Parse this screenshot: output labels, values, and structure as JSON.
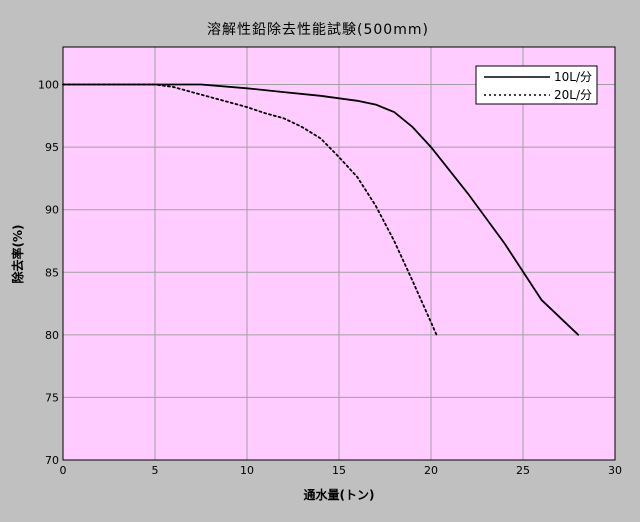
{
  "chart_data": {
    "type": "line",
    "title": "溶解性鉛除去性能試験(500mm)",
    "xlabel": "通水量(トン)",
    "ylabel": "除去率(%)",
    "xlim": [
      0,
      30
    ],
    "ylim": [
      70,
      103
    ],
    "xticks": [
      0,
      5,
      10,
      15,
      20,
      25,
      30
    ],
    "yticks": [
      70,
      75,
      80,
      85,
      90,
      95,
      100
    ],
    "grid": true,
    "legend_position": "top-right",
    "plot_background": "#ffccff",
    "series": [
      {
        "name": "10L/分",
        "style": "solid",
        "color": "#000000",
        "x": [
          0,
          5,
          7.5,
          10,
          12,
          14,
          16,
          17,
          18,
          19,
          20,
          22,
          24,
          26,
          28
        ],
        "y": [
          100,
          100,
          100,
          99.7,
          99.4,
          99.1,
          98.7,
          98.4,
          97.8,
          96.6,
          95,
          91.3,
          87.3,
          82.8,
          80
        ]
      },
      {
        "name": "20L/分",
        "style": "dotted",
        "color": "#000000",
        "x": [
          0,
          5,
          6,
          7,
          8,
          9,
          10,
          11,
          12,
          13,
          14,
          15,
          16,
          17,
          18,
          19,
          20,
          20.3
        ],
        "y": [
          100,
          100,
          99.8,
          99.4,
          99,
          98.6,
          98.2,
          97.7,
          97.3,
          96.6,
          95.7,
          94.2,
          92.6,
          90.3,
          87.5,
          84.3,
          81,
          80
        ]
      }
    ]
  }
}
